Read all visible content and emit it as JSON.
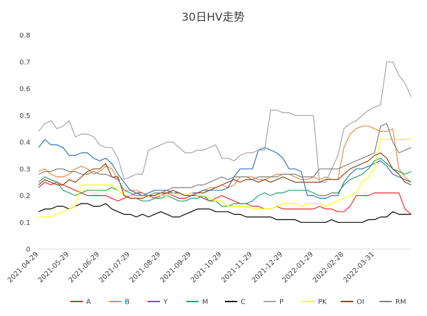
{
  "chart_data": {
    "type": "line",
    "title": "30日HV走势",
    "xlabel": "",
    "ylabel": "",
    "ylim": [
      0,
      0.8
    ],
    "y_ticks": [
      "0",
      "0.1",
      "0.2",
      "0.3",
      "0.4",
      "0.5",
      "0.6",
      "0.7",
      "0.8"
    ],
    "x_tick_labels": [
      "2021-04-29",
      "2021-05-29",
      "2021-06-29",
      "2021-07-29",
      "2021-08-29",
      "2021-09-29",
      "2021-10-29",
      "2021-11-29",
      "2021-12-29",
      "2022-01-29",
      "2022-02-28",
      "2022-03-31"
    ],
    "x_tick_index": [
      0,
      5,
      10,
      15,
      20,
      25,
      30,
      35,
      40,
      45,
      50,
      55
    ],
    "grid": false,
    "legend_position": "bottom",
    "series": [
      {
        "name": "A",
        "color": "#e8262b",
        "values": [
          0.23,
          0.25,
          0.24,
          0.25,
          0.24,
          0.23,
          0.22,
          0.21,
          0.2,
          0.2,
          0.2,
          0.2,
          0.19,
          0.18,
          0.19,
          0.2,
          0.21,
          0.21,
          0.2,
          0.19,
          0.2,
          0.21,
          0.2,
          0.19,
          0.19,
          0.2,
          0.2,
          0.19,
          0.18,
          0.19,
          0.2,
          0.19,
          0.18,
          0.17,
          0.17,
          0.16,
          0.16,
          0.15,
          0.15,
          0.16,
          0.15,
          0.15,
          0.15,
          0.15,
          0.15,
          0.15,
          0.16,
          0.15,
          0.15,
          0.14,
          0.14,
          0.16,
          0.2,
          0.2,
          0.2,
          0.21,
          0.21,
          0.21,
          0.21,
          0.21,
          0.15,
          0.13
        ]
      },
      {
        "name": "B",
        "color": "#f0883a",
        "values": [
          0.29,
          0.3,
          0.28,
          0.27,
          0.27,
          0.28,
          0.3,
          0.31,
          0.3,
          0.28,
          0.29,
          0.31,
          0.3,
          0.26,
          0.22,
          0.22,
          0.22,
          0.21,
          0.2,
          0.2,
          0.21,
          0.21,
          0.21,
          0.21,
          0.2,
          0.21,
          0.21,
          0.22,
          0.23,
          0.23,
          0.24,
          0.23,
          0.24,
          0.27,
          0.27,
          0.27,
          0.26,
          0.26,
          0.27,
          0.28,
          0.28,
          0.28,
          0.27,
          0.26,
          0.26,
          0.27,
          0.26,
          0.27,
          0.26,
          0.26,
          0.38,
          0.43,
          0.45,
          0.46,
          0.46,
          0.45,
          0.44,
          0.44,
          0.45,
          0.3,
          0.27,
          0.25
        ]
      },
      {
        "name": "Y",
        "color": "#2e75b6",
        "values": [
          0.38,
          0.41,
          0.39,
          0.39,
          0.38,
          0.35,
          0.35,
          0.36,
          0.36,
          0.34,
          0.33,
          0.34,
          0.32,
          0.28,
          0.25,
          0.22,
          0.21,
          0.2,
          0.21,
          0.22,
          0.22,
          0.22,
          0.21,
          0.21,
          0.2,
          0.21,
          0.21,
          0.22,
          0.22,
          0.22,
          0.22,
          0.23,
          0.27,
          0.3,
          0.3,
          0.3,
          0.37,
          0.38,
          0.37,
          0.36,
          0.34,
          0.3,
          0.3,
          0.29,
          0.2,
          0.2,
          0.19,
          0.19,
          0.2,
          0.2,
          0.25,
          0.28,
          0.3,
          0.3,
          0.31,
          0.32,
          0.33,
          0.31,
          0.28,
          0.27,
          0.26,
          0.25
        ]
      },
      {
        "name": "M",
        "color": "#21a366",
        "values": [
          0.25,
          0.27,
          0.26,
          0.25,
          0.22,
          0.21,
          0.2,
          0.21,
          0.22,
          0.22,
          0.22,
          0.22,
          0.23,
          0.22,
          0.2,
          0.19,
          0.19,
          0.18,
          0.18,
          0.19,
          0.19,
          0.2,
          0.19,
          0.18,
          0.18,
          0.19,
          0.19,
          0.2,
          0.18,
          0.18,
          0.16,
          0.16,
          0.17,
          0.17,
          0.17,
          0.18,
          0.2,
          0.21,
          0.2,
          0.21,
          0.21,
          0.22,
          0.22,
          0.22,
          0.22,
          0.21,
          0.2,
          0.2,
          0.21,
          0.21,
          0.24,
          0.26,
          0.27,
          0.28,
          0.3,
          0.33,
          0.34,
          0.32,
          0.3,
          0.29,
          0.28,
          0.29
        ]
      },
      {
        "name": "C",
        "color": "#000000",
        "values": [
          0.14,
          0.15,
          0.15,
          0.16,
          0.16,
          0.15,
          0.16,
          0.17,
          0.17,
          0.16,
          0.16,
          0.17,
          0.15,
          0.14,
          0.13,
          0.13,
          0.12,
          0.13,
          0.12,
          0.13,
          0.14,
          0.13,
          0.12,
          0.12,
          0.13,
          0.14,
          0.15,
          0.15,
          0.15,
          0.14,
          0.14,
          0.14,
          0.13,
          0.13,
          0.12,
          0.12,
          0.12,
          0.12,
          0.12,
          0.11,
          0.11,
          0.11,
          0.11,
          0.1,
          0.1,
          0.1,
          0.1,
          0.1,
          0.11,
          0.1,
          0.1,
          0.1,
          0.1,
          0.1,
          0.11,
          0.11,
          0.12,
          0.12,
          0.14,
          0.13,
          0.13,
          0.13
        ]
      },
      {
        "name": "P",
        "color": "#a5a5a5",
        "values": [
          0.44,
          0.47,
          0.48,
          0.45,
          0.46,
          0.48,
          0.42,
          0.43,
          0.43,
          0.42,
          0.39,
          0.38,
          0.38,
          0.34,
          0.26,
          0.27,
          0.28,
          0.28,
          0.37,
          0.38,
          0.39,
          0.4,
          0.4,
          0.38,
          0.36,
          0.36,
          0.37,
          0.37,
          0.38,
          0.39,
          0.34,
          0.34,
          0.33,
          0.35,
          0.36,
          0.36,
          0.37,
          0.37,
          0.52,
          0.52,
          0.51,
          0.51,
          0.5,
          0.5,
          0.5,
          0.5,
          0.25,
          0.25,
          0.3,
          0.35,
          0.45,
          0.47,
          0.48,
          0.5,
          0.52,
          0.53,
          0.54,
          0.7,
          0.7,
          0.65,
          0.62,
          0.57
        ]
      },
      {
        "name": "PK",
        "color": "#ffff00",
        "values": [
          0.12,
          0.12,
          0.12,
          0.13,
          0.14,
          0.15,
          0.16,
          0.24,
          0.24,
          0.24,
          0.24,
          0.24,
          0.24,
          0.22,
          0.2,
          0.2,
          0.2,
          0.2,
          0.2,
          0.21,
          0.2,
          0.2,
          0.21,
          0.2,
          0.2,
          0.21,
          0.2,
          0.2,
          0.19,
          0.18,
          0.18,
          0.16,
          0.16,
          0.16,
          0.16,
          0.15,
          0.15,
          0.15,
          0.15,
          0.16,
          0.17,
          0.17,
          0.17,
          0.16,
          0.17,
          0.17,
          0.17,
          0.16,
          0.17,
          0.18,
          0.19,
          0.2,
          0.21,
          0.25,
          0.27,
          0.3,
          0.41,
          0.41,
          0.41,
          0.41,
          0.41,
          0.41
        ]
      },
      {
        "name": "OI",
        "color": "#8b4513",
        "values": [
          0.24,
          0.26,
          0.25,
          0.24,
          0.24,
          0.26,
          0.25,
          0.27,
          0.29,
          0.3,
          0.3,
          0.32,
          0.27,
          0.27,
          0.2,
          0.19,
          0.19,
          0.19,
          0.2,
          0.2,
          0.21,
          0.21,
          0.22,
          0.21,
          0.2,
          0.2,
          0.21,
          0.21,
          0.22,
          0.23,
          0.24,
          0.25,
          0.26,
          0.25,
          0.26,
          0.26,
          0.25,
          0.26,
          0.25,
          0.26,
          0.27,
          0.26,
          0.25,
          0.25,
          0.25,
          0.25,
          0.25,
          0.26,
          0.26,
          0.26,
          0.28,
          0.3,
          0.31,
          0.32,
          0.33,
          0.35,
          0.36,
          0.34,
          0.3,
          0.28,
          0.25,
          0.24
        ]
      },
      {
        "name": "RM",
        "color": "#7f7f7f",
        "values": [
          0.28,
          0.29,
          0.29,
          0.3,
          0.3,
          0.29,
          0.29,
          0.28,
          0.28,
          0.29,
          0.28,
          0.28,
          0.27,
          0.26,
          0.22,
          0.21,
          0.2,
          0.2,
          0.2,
          0.21,
          0.21,
          0.22,
          0.23,
          0.23,
          0.23,
          0.23,
          0.24,
          0.24,
          0.25,
          0.26,
          0.27,
          0.26,
          0.27,
          0.27,
          0.27,
          0.26,
          0.27,
          0.27,
          0.27,
          0.27,
          0.28,
          0.28,
          0.28,
          0.27,
          0.27,
          0.27,
          0.3,
          0.3,
          0.3,
          0.3,
          0.31,
          0.32,
          0.33,
          0.34,
          0.35,
          0.36,
          0.46,
          0.47,
          0.4,
          0.36,
          0.37,
          0.38
        ]
      }
    ]
  }
}
